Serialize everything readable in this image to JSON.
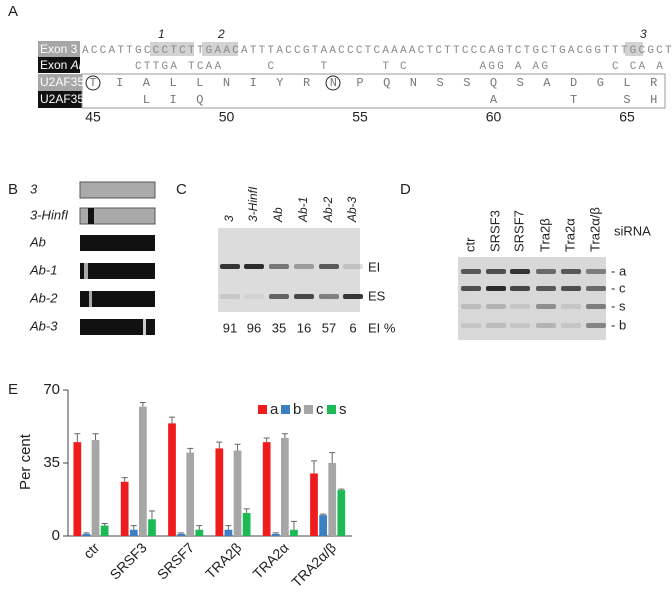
{
  "panel_labels": [
    "A",
    "B",
    "C",
    "D",
    "E"
  ],
  "panel_a": {
    "markers": [
      "1",
      "2",
      "3"
    ],
    "exon3_label": "Exon 3",
    "exonab_label": [
      "Exon",
      "Ab"
    ],
    "u2af35a_label": "U2AF35a",
    "u2af35b_label": "U2AF35b",
    "exon3_seq": "ACCATTGCCCTCTTGAACATTTACCGTAACCCTCAAAACTCTTCCCAGTCTGCTGACGGTTTGCGCT",
    "exonab_seq": "      CTTGA TCAA     C     T      T C        AGG A AG       C CA A",
    "u2af35a": [
      "T",
      "I",
      "A",
      "L",
      "L",
      "N",
      "I",
      "Y",
      "R",
      "N",
      "P",
      "Q",
      "N",
      "S",
      "S",
      "Q",
      "S",
      "A",
      "D",
      "G",
      "L",
      "R"
    ],
    "u2af35b": [
      null,
      null,
      "L",
      "I",
      "Q",
      null,
      null,
      null,
      null,
      null,
      null,
      null,
      null,
      null,
      null,
      "A",
      null,
      null,
      "T",
      null,
      "S",
      "H"
    ],
    "positions": [
      45,
      50,
      55,
      60,
      65
    ]
  },
  "panel_b": {
    "constructs": [
      "3",
      "3-HinfI",
      "Ab",
      "Ab-1",
      "Ab-2",
      "Ab-3"
    ]
  },
  "panel_c": {
    "lanes": [
      "3",
      "3-HinfI",
      "Ab",
      "Ab-1",
      "Ab-2",
      "Ab-3"
    ],
    "bands": [
      "EI",
      "ES"
    ],
    "ei_percent": [
      91,
      96,
      35,
      16,
      57,
      6
    ],
    "ei_label": "EI %"
  },
  "panel_d": {
    "lanes": [
      "ctr",
      "SRSF3",
      "SRSF7",
      "Tra2β",
      "Tra2α",
      "Tra2α/β"
    ],
    "lane_title": "siRNA",
    "bands": [
      "- a",
      "- c",
      "- s",
      "- b"
    ]
  },
  "chart_data": {
    "type": "bar",
    "ylabel": "Per cent",
    "categories": [
      "ctr",
      "SRSF3",
      "SRSF7",
      "TRA2β",
      "TRA2α",
      "TRA2α/β"
    ],
    "series": [
      {
        "name": "a",
        "color": "#ee1c1c",
        "values": [
          45,
          26,
          54,
          42,
          45,
          30
        ],
        "errors": [
          4,
          2,
          3,
          3,
          2,
          6
        ]
      },
      {
        "name": "b",
        "color": "#3b7fc4",
        "values": [
          1,
          3,
          1,
          3,
          1,
          10
        ],
        "errors": [
          0.5,
          2,
          0.5,
          2,
          0.5,
          0.5
        ]
      },
      {
        "name": "c",
        "color": "#a6a6a6",
        "values": [
          46,
          62,
          40,
          41,
          47,
          35
        ],
        "errors": [
          3,
          2,
          2,
          3,
          2,
          5
        ]
      },
      {
        "name": "s",
        "color": "#1db954",
        "values": [
          5,
          8,
          3,
          11,
          3,
          22
        ],
        "errors": [
          1,
          4,
          2,
          2,
          4,
          0.5
        ]
      }
    ],
    "ylim": [
      0,
      70
    ],
    "yticks": [
      0,
      35,
      70
    ],
    "legend": "top"
  }
}
